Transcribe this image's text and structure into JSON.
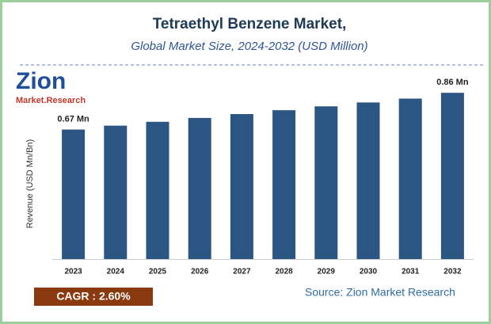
{
  "chart_data": {
    "type": "bar",
    "title": "Tetraethyl Benzene Market,",
    "subtitle": "Global Market Size, 2024-2032 (USD Million)",
    "y_label": "Revenue (USD Mn/Bn)",
    "categories": [
      "2023",
      "2024",
      "2025",
      "2026",
      "2027",
      "2028",
      "2029",
      "2030",
      "2031",
      "2032"
    ],
    "values": [
      0.67,
      0.69,
      0.71,
      0.73,
      0.75,
      0.77,
      0.79,
      0.81,
      0.83,
      0.86
    ],
    "value_labels": [
      "0.67 Mn",
      null,
      null,
      null,
      null,
      null,
      null,
      null,
      null,
      "0.86 Mn"
    ],
    "color": "#2b5583",
    "ylim": [
      0,
      1.0
    ],
    "logo": {
      "text": "Zion",
      "subtext": "Market.Research"
    },
    "cagr": "CAGR : 2.60%",
    "source": "Source: Zion Market Research"
  }
}
